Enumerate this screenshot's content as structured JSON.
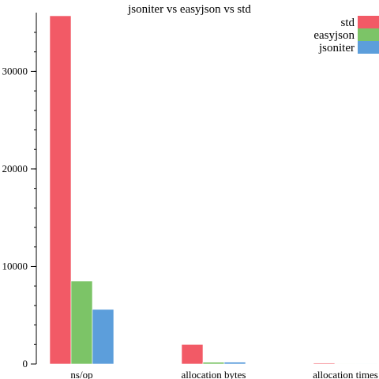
{
  "chart_data": {
    "type": "bar",
    "title": "jsoniter vs easyjson vs std",
    "xlabel": "",
    "ylabel": "",
    "categories": [
      "ns/op",
      "allocation bytes",
      "allocation times"
    ],
    "series": [
      {
        "name": "std",
        "color": "#f25a66",
        "values": [
          35700,
          2000,
          90
        ]
      },
      {
        "name": "easyjson",
        "color": "#7cc467",
        "values": [
          8500,
          180,
          5
        ]
      },
      {
        "name": "jsoniter",
        "color": "#5c9edb",
        "values": [
          5600,
          190,
          5
        ]
      }
    ],
    "ylim": [
      0,
      35700
    ],
    "yticks": [
      0,
      10000,
      20000,
      30000
    ],
    "yticks_minor_step": 2000,
    "grid": false,
    "legend_position": "top-right"
  }
}
